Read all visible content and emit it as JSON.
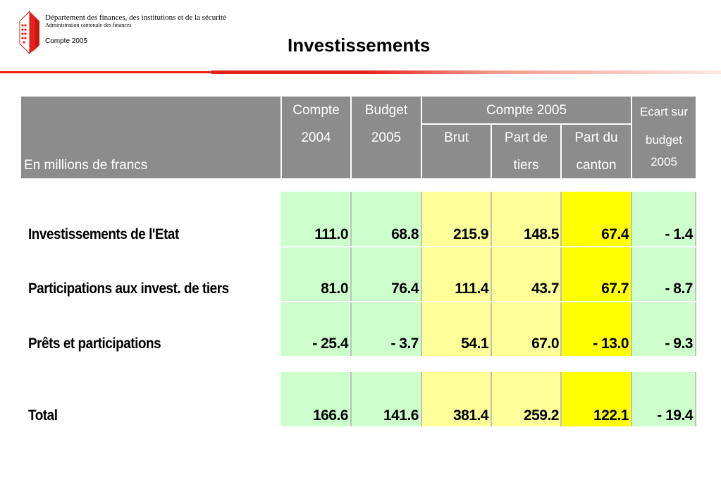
{
  "header": {
    "department": "Département des finances, des institutions et de la sécurité",
    "administration": "Administration cantonale des finances",
    "report": "Compte 2005",
    "title": "Investissements"
  },
  "colors": {
    "header_bg": "#8c8c8c",
    "green": "#ccffcc",
    "pale_yellow": "#ffff99",
    "yellow": "#ffff00",
    "accent_red": "#e8201a"
  },
  "logo": {
    "icon": "coat-of-arms-icon"
  },
  "table": {
    "units_label": "En millions de francs",
    "columns": {
      "compte2004": {
        "line1": "Compte",
        "line2": "2004"
      },
      "budget2005": {
        "line1": "Budget",
        "line2": "2005"
      },
      "compte2005": "Compte 2005",
      "brut": "Brut",
      "part_tiers": {
        "line1": "Part de",
        "line2": "tiers"
      },
      "part_canton": {
        "line1": "Part du",
        "line2": "canton"
      },
      "ecart": {
        "line1": "Ecart sur",
        "line2": "budget",
        "line3": "2005"
      }
    },
    "rows": [
      {
        "label": "Investissements de l'Etat",
        "values": [
          "111.0",
          "68.8",
          "215.9",
          "148.5",
          "67.4",
          "- 1.4"
        ]
      },
      {
        "label": "Participations aux invest. de tiers",
        "values": [
          "81.0",
          "76.4",
          "111.4",
          "43.7",
          "67.7",
          "- 8.7"
        ]
      },
      {
        "label": "Prêts et participations",
        "values": [
          "- 25.4",
          "- 3.7",
          "54.1",
          "67.0",
          "- 13.0",
          "- 9.3"
        ]
      }
    ],
    "total": {
      "label": "Total",
      "values": [
        "166.6",
        "141.6",
        "381.4",
        "259.2",
        "122.1",
        "- 19.4"
      ]
    }
  }
}
